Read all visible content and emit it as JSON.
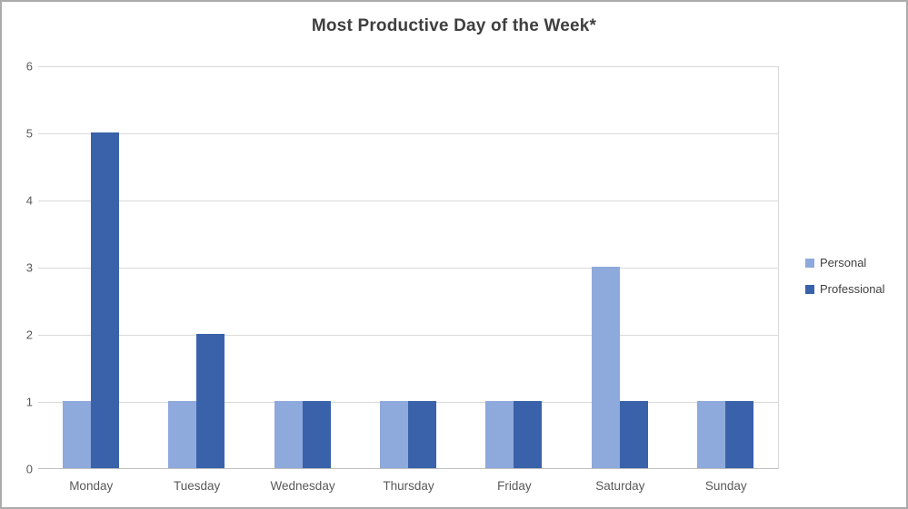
{
  "chart_data": {
    "type": "bar",
    "title": "Most Productive Day of the Week*",
    "categories": [
      "Monday",
      "Tuesday",
      "Wednesday",
      "Thursday",
      "Friday",
      "Saturday",
      "Sunday"
    ],
    "series": [
      {
        "name": "Personal",
        "color": "#8EA9DB",
        "values": [
          1,
          1,
          1,
          1,
          1,
          3,
          1
        ]
      },
      {
        "name": "Professional",
        "color": "#3A62AB",
        "values": [
          5,
          2,
          1,
          1,
          1,
          1,
          1
        ]
      }
    ],
    "xlabel": "",
    "ylabel": "",
    "ylim": [
      0,
      6
    ],
    "ytick_step": 1,
    "yticks": [
      0,
      1,
      2,
      3,
      4,
      5,
      6
    ],
    "grid": true,
    "legend_position": "right",
    "colors": {
      "gridline": "#D9D9D9",
      "axis_line": "#BFBFBF",
      "tick_label": "#595959",
      "title": "#3F3F3F",
      "background": "#FFFFFF",
      "frame_border": "#ABABAB"
    }
  }
}
